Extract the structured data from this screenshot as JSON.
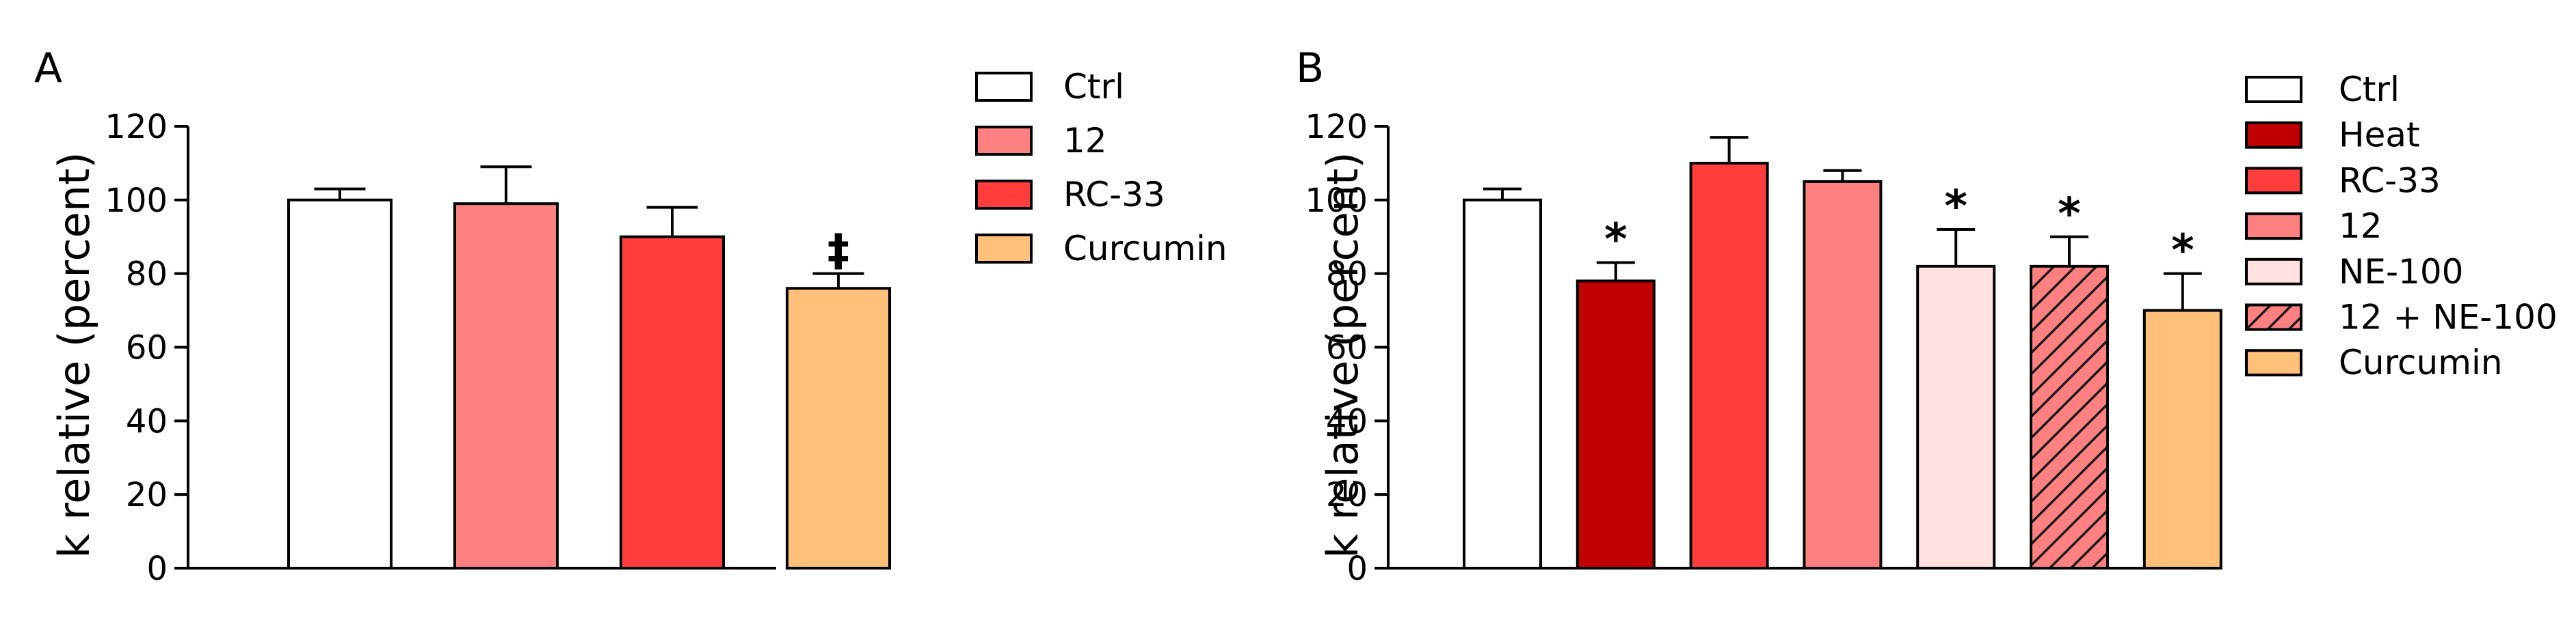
{
  "chart_data": [
    {
      "type": "bar",
      "panel_label": "A",
      "title": "",
      "xlabel": "",
      "ylabel": "k relative (percent)",
      "ylim": [
        0,
        120
      ],
      "yticks": [
        "0",
        "20",
        "40",
        "60",
        "80",
        "100",
        "120"
      ],
      "grid": false,
      "legend_placement": "right",
      "categories": [
        "Ctrl",
        "12",
        "RC-33",
        "Curcumin"
      ],
      "values": [
        100,
        99,
        90,
        76
      ],
      "errors": [
        3,
        10,
        8,
        4
      ],
      "markers": [
        "",
        "",
        "",
        "‡"
      ],
      "colors": [
        "#ffffff",
        "#ff8080",
        "#ff3d3d",
        "#ffc07a"
      ],
      "patterns": [
        "none",
        "none",
        "none",
        "none"
      ]
    },
    {
      "type": "bar",
      "panel_label": "B",
      "title": "",
      "xlabel": "",
      "ylabel": "k relative (percent)",
      "ylim": [
        0,
        120
      ],
      "yticks": [
        "0",
        "20",
        "40",
        "60",
        "80",
        "100",
        "120"
      ],
      "grid": false,
      "legend_placement": "right",
      "categories": [
        "Ctrl",
        "Heat",
        "RC-33",
        "12",
        "NE-100",
        "12 + NE-100",
        "Curcumin"
      ],
      "values": [
        100,
        78,
        110,
        105,
        82,
        82,
        70
      ],
      "errors": [
        3,
        5,
        7,
        3,
        10,
        8,
        10
      ],
      "markers": [
        "",
        "*",
        "",
        "",
        "*",
        "*",
        "*"
      ],
      "colors": [
        "#ffffff",
        "#c00000",
        "#ff3d3d",
        "#ff8080",
        "#ffe1e1",
        "#ff8080",
        "#ffc07a"
      ],
      "patterns": [
        "none",
        "none",
        "none",
        "none",
        "none",
        "hatch",
        "none"
      ]
    }
  ]
}
